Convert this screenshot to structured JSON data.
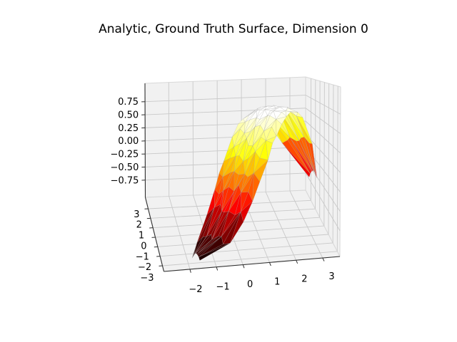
{
  "chart_data": {
    "type": "surface3d",
    "title": "Analytic, Ground Truth Surface, Dimension 0",
    "colormap": "hot",
    "legend": null,
    "axes": {
      "x": {
        "range": [
          -2.98,
          3.65
        ],
        "ticks": [
          {
            "v": -2,
            "label": "−2"
          },
          {
            "v": -1,
            "label": "−1"
          },
          {
            "v": 0,
            "label": "0"
          },
          {
            "v": 1,
            "label": "1"
          },
          {
            "v": 2,
            "label": "2"
          },
          {
            "v": 3,
            "label": "3"
          }
        ]
      },
      "y": {
        "range": [
          -3.6,
          4.2
        ],
        "ticks": [
          {
            "v": 3,
            "label": "3"
          },
          {
            "v": 2,
            "label": "2"
          },
          {
            "v": 1,
            "label": "1"
          },
          {
            "v": 0,
            "label": "0"
          },
          {
            "v": -1,
            "label": "−1"
          },
          {
            "v": -2,
            "label": "−2"
          },
          {
            "v": -3,
            "label": "−3"
          }
        ]
      },
      "z": {
        "range": [
          -1.08,
          1.1
        ],
        "ticks": [
          {
            "v": 0.75,
            "label": "0.75"
          },
          {
            "v": 0.5,
            "label": "0.50"
          },
          {
            "v": 0.25,
            "label": "0.25"
          },
          {
            "v": 0.0,
            "label": "0.00"
          },
          {
            "v": -0.25,
            "label": "−0.25"
          },
          {
            "v": -0.5,
            "label": "−0.50"
          },
          {
            "v": -0.75,
            "label": "−0.75"
          }
        ]
      }
    },
    "surface": {
      "description": "triangulated sine ridge over a diagonal band of the xy-plane",
      "path_start": {
        "x": -1.7,
        "y": -2.9
      },
      "path_end": {
        "x": 3.7,
        "y": 2.8
      },
      "half_width": 1.05,
      "amplitude": 0.92,
      "phase_start": -1.77,
      "phase_end": 3.75,
      "cross_sag": 0.12,
      "z_peak": 0.92,
      "z_low": -0.96
    },
    "style": {
      "background": "#ffffff",
      "pane_color": "#f1f1f1",
      "pane_edge_color": "#d8d8d8",
      "grid_color": "#c9c9c9",
      "spine_color": "#2f2f2f",
      "tick_label_color": "#000000",
      "wire_color": "rgba(160,160,160,0.45)"
    }
  }
}
